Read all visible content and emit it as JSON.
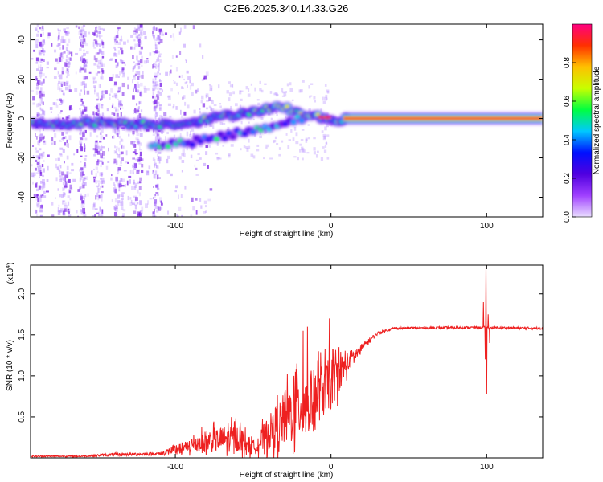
{
  "title": "C2E6.2025.340.14.33.G26",
  "chart_data": [
    {
      "type": "heatmap",
      "title": "C2E6.2025.340.14.33.G26",
      "xlabel": "Height of straight line (km)",
      "ylabel": "Frequency (Hz)",
      "xlim": [
        -193,
        136
      ],
      "ylim": [
        -50,
        48
      ],
      "xticks": [
        -100,
        0,
        100
      ],
      "xtick_labels": [
        "-100",
        "0",
        "100"
      ],
      "yticks": [
        40,
        20,
        0,
        -20,
        -40
      ],
      "ytick_labels": [
        "40",
        "20",
        "0",
        "-20",
        "-40"
      ],
      "main_ridge": [
        {
          "x": -193,
          "y": -3
        },
        {
          "x": -150,
          "y": -2
        },
        {
          "x": -110,
          "y": -3
        },
        {
          "x": -90,
          "y": -2
        },
        {
          "x": -70,
          "y": 1
        },
        {
          "x": -55,
          "y": 3
        },
        {
          "x": -40,
          "y": 5
        },
        {
          "x": -30,
          "y": 6
        },
        {
          "x": -20,
          "y": 2
        },
        {
          "x": -10,
          "y": 1
        },
        {
          "x": -2,
          "y": 0
        },
        {
          "x": 0,
          "y": -1
        },
        {
          "x": 10,
          "y": 0
        },
        {
          "x": 136,
          "y": 0
        }
      ],
      "secondary_ridge": [
        {
          "x": -115,
          "y": -14
        },
        {
          "x": -90,
          "y": -12
        },
        {
          "x": -70,
          "y": -9
        },
        {
          "x": -50,
          "y": -6
        },
        {
          "x": -35,
          "y": -3
        },
        {
          "x": -20,
          "y": 0
        }
      ],
      "colorbar": {
        "label": "Normalized spectral amplitude",
        "ticks": [
          0.0,
          0.2,
          0.4,
          0.6,
          0.8
        ],
        "tick_labels": [
          "0.0",
          "0.2",
          "0.4",
          "0.6",
          "0.8"
        ],
        "range": [
          0,
          1
        ],
        "colors": [
          "#e9ddff",
          "#a040ff",
          "#5000e0",
          "#0010ff",
          "#00c8ff",
          "#00ff40",
          "#c8ff00",
          "#ffc000",
          "#ff3000",
          "#ff0080"
        ]
      }
    },
    {
      "type": "line",
      "xlabel": "Height of straight line (km)",
      "ylabel": "SNR (10 * v/v)",
      "scale_label": "(x10",
      "scale_exponent": "4",
      "ylabel_suffix": ")",
      "xlim": [
        -193,
        136
      ],
      "ylim": [
        0,
        2.35
      ],
      "xticks": [
        -100,
        0,
        100
      ],
      "xtick_labels": [
        "-100",
        "0",
        "100"
      ],
      "yticks": [
        0.5,
        1.0,
        1.5,
        2.0
      ],
      "ytick_labels": [
        "0.5",
        "1.0",
        "1.5",
        "2.0"
      ],
      "series": [
        {
          "name": "SNR",
          "color": "#ee2020",
          "envelope": [
            {
              "x": -193,
              "y": 0.02,
              "noise": 0.01
            },
            {
              "x": -160,
              "y": 0.02,
              "noise": 0.01
            },
            {
              "x": -140,
              "y": 0.04,
              "noise": 0.02
            },
            {
              "x": -110,
              "y": 0.05,
              "noise": 0.02
            },
            {
              "x": -95,
              "y": 0.12,
              "noise": 0.1
            },
            {
              "x": -80,
              "y": 0.2,
              "noise": 0.2
            },
            {
              "x": -60,
              "y": 0.25,
              "noise": 0.25
            },
            {
              "x": -50,
              "y": 0.12,
              "noise": 0.12
            },
            {
              "x": -40,
              "y": 0.3,
              "noise": 0.3
            },
            {
              "x": -25,
              "y": 0.55,
              "noise": 0.55
            },
            {
              "x": -10,
              "y": 0.75,
              "noise": 0.5
            },
            {
              "x": 0,
              "y": 0.9,
              "noise": 0.45
            },
            {
              "x": 10,
              "y": 1.15,
              "noise": 0.2
            },
            {
              "x": 20,
              "y": 1.35,
              "noise": 0.05
            },
            {
              "x": 30,
              "y": 1.52,
              "noise": 0.02
            },
            {
              "x": 40,
              "y": 1.58,
              "noise": 0.015
            },
            {
              "x": 90,
              "y": 1.59,
              "noise": 0.015
            },
            {
              "x": 136,
              "y": 1.58,
              "noise": 0.015
            }
          ],
          "spikes": [
            {
              "x": 98,
              "y": 1.9
            },
            {
              "x": 99,
              "y": 1.2
            },
            {
              "x": 99.5,
              "y": 2.35
            },
            {
              "x": 100,
              "y": 0.78
            },
            {
              "x": 101,
              "y": 1.75
            },
            {
              "x": 102,
              "y": 1.4
            },
            {
              "x": -1,
              "y": 1.7
            },
            {
              "x": -8,
              "y": 1.3
            },
            {
              "x": -15,
              "y": 1.6
            },
            {
              "x": -22,
              "y": 1.15
            },
            {
              "x": -18,
              "y": 1.55
            },
            {
              "x": 5,
              "y": 1.35
            }
          ]
        }
      ]
    }
  ]
}
